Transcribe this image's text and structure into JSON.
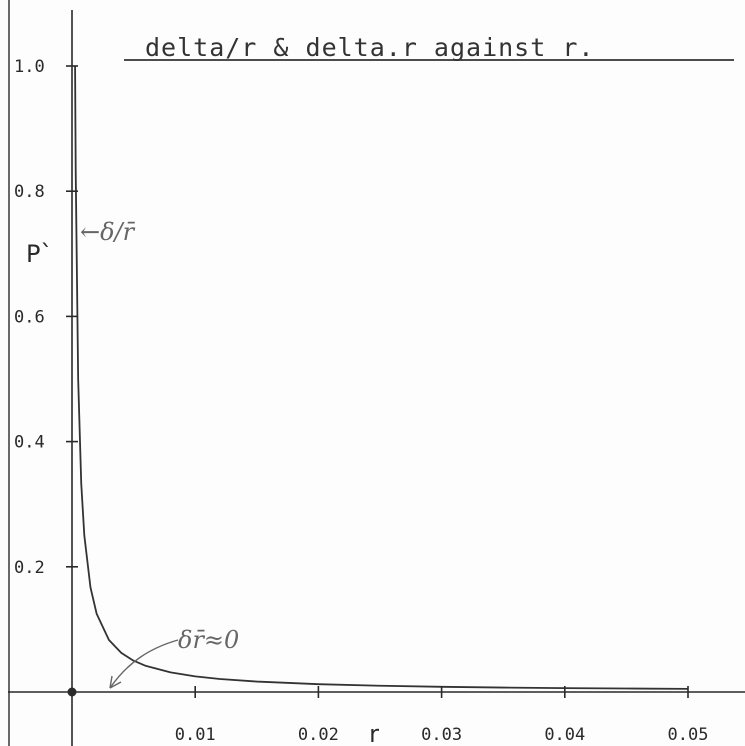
{
  "chart_data": {
    "type": "line",
    "title": "delta/r & delta.r against r.",
    "xlabel": "r",
    "ylabel": "P`",
    "xlim": [
      0,
      0.05
    ],
    "ylim": [
      0,
      1.0
    ],
    "x_ticks": [
      "0.01",
      "0.02",
      "0.03",
      "0.04",
      "0.05"
    ],
    "y_ticks": [
      "0.2",
      "0.4",
      "0.6",
      "0.8",
      "1.0"
    ],
    "grid": false,
    "legend": "none",
    "series": [
      {
        "x": [
          0.00025,
          0.0003,
          0.0005,
          0.00075,
          0.001,
          0.0015,
          0.002,
          0.003,
          0.004,
          0.005,
          0.006,
          0.008,
          0.01,
          0.012,
          0.015,
          0.02,
          0.025,
          0.03,
          0.035,
          0.04,
          0.045,
          0.05
        ],
        "y": [
          1.0,
          0.833,
          0.5,
          0.333,
          0.25,
          0.167,
          0.125,
          0.083,
          0.0625,
          0.05,
          0.0417,
          0.0313,
          0.025,
          0.0208,
          0.0167,
          0.0125,
          0.01,
          0.0083,
          0.0071,
          0.00625,
          0.0056,
          0.005
        ]
      }
    ],
    "annotations": [
      {
        "text": "←δ/r̄",
        "x": 0.0006,
        "y": 0.73
      },
      {
        "text": "δr̄≈0",
        "x": 0.009,
        "y": 0.045
      }
    ]
  },
  "colors": {
    "axis": "#2a2a2a",
    "curve": "#333333",
    "annotation": "#666666"
  }
}
